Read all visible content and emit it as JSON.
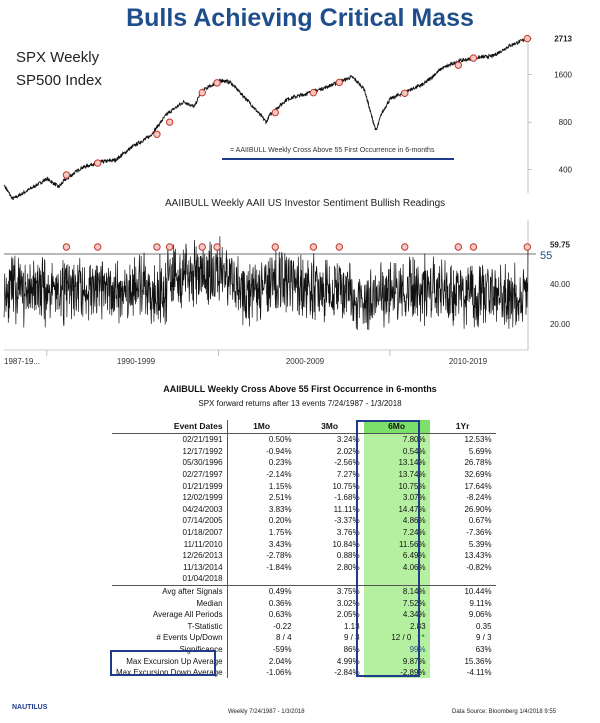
{
  "header": {
    "title": "Bulls Achieving Critical Mass",
    "spx_label_line1": "SPX Weekly",
    "spx_label_line2": "SP500 Index",
    "legend": "= AAIIBULL Weekly Cross Above 55 First Occurrence in 6-months",
    "aaii_title": "AAIIBULL Weekly    AAII US Investor Sentiment Bullish Readings"
  },
  "chart_data": [
    {
      "type": "line",
      "name": "SPX Weekly",
      "title": "SPX Weekly SP500 Index",
      "yscale": "log",
      "ylim": [
        280,
        2900
      ],
      "yticks": [
        "2713",
        "1600",
        "800",
        "400"
      ],
      "last_value": "2713",
      "x": [
        1987.5,
        1988,
        1989,
        1990,
        1990.7,
        1991,
        1992,
        1993,
        1994,
        1995,
        1996,
        1997,
        1998,
        1998.6,
        1999,
        2000.2,
        2000.7,
        2001.7,
        2002.8,
        2003,
        2004,
        2005,
        2006,
        2007.8,
        2008.5,
        2008.9,
        2009.2,
        2009.5,
        2010,
        2011,
        2012,
        2013,
        2014,
        2015,
        2016,
        2017,
        2018
      ],
      "y": [
        320,
        260,
        300,
        350,
        310,
        340,
        410,
        445,
        460,
        560,
        650,
        900,
        1080,
        1000,
        1260,
        1480,
        1430,
        1100,
        800,
        890,
        1120,
        1200,
        1300,
        1550,
        1300,
        900,
        700,
        900,
        1120,
        1260,
        1400,
        1750,
        1950,
        2050,
        2100,
        2450,
        2713
      ],
      "signals": [
        {
          "date": "02/21/1991",
          "value": 370
        },
        {
          "date": "12/17/1992",
          "value": 440
        },
        {
          "date": "05/30/1996",
          "value": 670
        },
        {
          "date": "02/27/1997",
          "value": 800
        },
        {
          "date": "01/21/1999",
          "value": 1230
        },
        {
          "date": "12/02/1999",
          "value": 1420
        },
        {
          "date": "04/24/2003",
          "value": 920
        },
        {
          "date": "07/14/2005",
          "value": 1230
        },
        {
          "date": "01/18/2007",
          "value": 1430
        },
        {
          "date": "11/11/2010",
          "value": 1220
        },
        {
          "date": "12/26/2013",
          "value": 1840
        },
        {
          "date": "11/13/2014",
          "value": 2040
        },
        {
          "date": "01/04/2018",
          "value": 2713
        }
      ],
      "legend": "= AAIIBULL Weekly Cross Above 55 First Occurrence in 6-months"
    },
    {
      "type": "line",
      "name": "AAIIBULL Weekly",
      "title": "AAIIBULL Weekly    AAII US Investor Sentiment Bullish Readings",
      "ylim": [
        10,
        70
      ],
      "yticks": [
        "59.75",
        "40.00",
        "20.00"
      ],
      "threshold": 55,
      "threshold_label": "55",
      "last_value": "59.75",
      "xlabels": [
        "1987-19...",
        "1990-1999",
        "2000-2009",
        "2010-2019"
      ]
    }
  ],
  "table": {
    "title": "AAIIBULL Weekly Cross Above 55 First Occurrence in 6-months",
    "subtitle": "SPX forward returns after 13 events 7/24/1987 - 1/3/2018",
    "headers": [
      "Event Dates",
      "1Mo",
      "3Mo",
      "6Mo",
      "1Yr"
    ],
    "rows": [
      [
        "02/21/1991",
        "0.50%",
        "3.24%",
        "7.80%",
        "12.53%"
      ],
      [
        "12/17/1992",
        "-0.94%",
        "2.02%",
        "0.54%",
        "5.69%"
      ],
      [
        "05/30/1996",
        "0.23%",
        "-2.56%",
        "13.14%",
        "26.78%"
      ],
      [
        "02/27/1997",
        "-2.14%",
        "7.27%",
        "13.74%",
        "32.69%"
      ],
      [
        "01/21/1999",
        "1.15%",
        "10.75%",
        "10.75%",
        "17.64%"
      ],
      [
        "12/02/1999",
        "2.51%",
        "-1.68%",
        "3.07%",
        "-8.24%"
      ],
      [
        "04/24/2003",
        "3.83%",
        "11.11%",
        "14.47%",
        "26.90%"
      ],
      [
        "07/14/2005",
        "0.20%",
        "-3.37%",
        "4.86%",
        "0.67%"
      ],
      [
        "01/18/2007",
        "1.75%",
        "3.76%",
        "7.24%",
        "-7.36%"
      ],
      [
        "11/11/2010",
        "3.43%",
        "10.84%",
        "11.56%",
        "5.39%"
      ],
      [
        "12/26/2013",
        "-2.78%",
        "0.88%",
        "6.49%",
        "13.43%"
      ],
      [
        "11/13/2014",
        "-1.84%",
        "2.80%",
        "4.06%",
        "-0.82%"
      ],
      [
        "01/04/2018",
        "",
        "",
        "",
        ""
      ]
    ],
    "stats": [
      [
        "Avg after Signals",
        "0.49%",
        "3.75%",
        "8.14%",
        "10.44%"
      ],
      [
        "Median",
        "0.36%",
        "3.02%",
        "7.52%",
        "9.11%"
      ],
      [
        "Average All Periods",
        "0.63%",
        "2.05%",
        "4.34%",
        "9.06%"
      ],
      [
        "T-Statistic",
        "-0.22",
        "1.13",
        "2.83",
        "0.35"
      ],
      [
        "# Events Up/Down",
        "8 / 4",
        "9 / 3",
        "12 / 0",
        "9 / 3"
      ],
      [
        "Significance",
        "-59%",
        "86%",
        "99%",
        "63%"
      ],
      [
        "Max Excursion Up Average",
        "2.04%",
        "4.99%",
        "9.87%",
        "15.36%"
      ],
      [
        "Max Excursion Down Average",
        "-1.06%",
        "-2.84%",
        "-2.89%",
        "-4.11%"
      ]
    ],
    "stars": "**"
  },
  "footer": {
    "logo": "NAUTILUS",
    "left": "Weekly    7/24/1987 - 1/3/2018",
    "source": "Data Source: Bloomberg        1/4/2018 9:55"
  },
  "colors": {
    "title": "#1f4e8c",
    "marker": "#c0392b",
    "highlight": "#b5f0a0",
    "box": "#1f3c8c"
  }
}
